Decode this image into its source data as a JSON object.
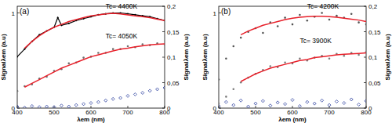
{
  "chart_data": [
    {
      "type": "scatter",
      "title": "(a)",
      "x_label": "λem (nm)",
      "y_label": "Signalλem (a.u)",
      "y2_label": "Signalλem (a.u)",
      "xlim": [
        400,
        800
      ],
      "xticks": [
        400,
        500,
        600,
        700,
        800
      ],
      "ylim": [
        0,
        1.07
      ],
      "yticks": [
        0,
        1
      ],
      "y2lim": [
        0,
        0.2
      ],
      "y2ticks": [
        0,
        {
          "value": 0.05,
          "label": "0,05"
        },
        {
          "value": 0.1,
          "label": "0,1"
        },
        {
          "value": 0.15,
          "label": "0,15"
        },
        {
          "value": 0.2,
          "label": "0,2"
        }
      ],
      "annotations": [
        {
          "text": "Tc= 4400K",
          "x": 640,
          "y": 1.045
        },
        {
          "text": "Tc= 4050K",
          "x": 640,
          "y": 0.73
        }
      ],
      "series": [
        {
          "type": "line",
          "color": "#000000",
          "marker": "circle",
          "line_style": "solid",
          "x": [
            400,
            420,
            440,
            460,
            480,
            500,
            510,
            520,
            540,
            560,
            580,
            600,
            620,
            640,
            660,
            680,
            700,
            720,
            740,
            760,
            780,
            800
          ],
          "values": [
            0.54,
            0.62,
            0.7,
            0.77,
            0.81,
            0.85,
            0.95,
            0.87,
            0.89,
            0.92,
            0.94,
            0.96,
            0.98,
            0.99,
            1.0,
            1.0,
            0.99,
            0.98,
            0.97,
            0.96,
            0.94,
            0.92
          ]
        },
        {
          "type": "line",
          "color": "#e8202a",
          "line_style": "solid",
          "x": [
            420,
            440,
            460,
            480,
            500,
            520,
            540,
            560,
            580,
            600,
            620,
            640,
            660,
            680,
            700,
            720,
            740,
            760,
            780,
            800
          ],
          "values": [
            0.63,
            0.7,
            0.76,
            0.81,
            0.85,
            0.88,
            0.91,
            0.93,
            0.95,
            0.97,
            0.98,
            0.99,
            0.995,
            0.99,
            0.98,
            0.97,
            0.96,
            0.95,
            0.935,
            0.92
          ]
        },
        {
          "type": "scatter",
          "color": "#6e6e6e",
          "marker": "circle",
          "x": [
            400,
            420,
            440,
            460,
            480,
            500,
            520,
            540,
            560,
            580,
            600,
            620,
            640,
            660,
            680,
            700,
            720,
            740,
            760,
            780,
            800
          ],
          "values": [
            0.18,
            0.23,
            0.25,
            0.31,
            0.33,
            0.39,
            0.41,
            0.47,
            0.48,
            0.53,
            0.54,
            0.58,
            0.58,
            0.62,
            0.62,
            0.65,
            0.64,
            0.67,
            0.66,
            0.68,
            0.67
          ]
        },
        {
          "type": "line",
          "color": "#e8202a",
          "line_style": "solid",
          "x": [
            420,
            440,
            460,
            480,
            500,
            520,
            540,
            560,
            580,
            600,
            620,
            640,
            660,
            680,
            700,
            720,
            740,
            760,
            780,
            800
          ],
          "values": [
            0.22,
            0.26,
            0.3,
            0.34,
            0.38,
            0.42,
            0.45,
            0.48,
            0.51,
            0.54,
            0.56,
            0.58,
            0.6,
            0.62,
            0.63,
            0.645,
            0.655,
            0.665,
            0.67,
            0.675
          ]
        },
        {
          "type": "scatter",
          "color": "#2b3f9e",
          "marker": "diamond",
          "axis": "y2",
          "x": [
            400,
            420,
            440,
            460,
            480,
            500,
            520,
            540,
            560,
            580,
            600,
            620,
            640,
            660,
            680,
            700,
            720,
            740,
            760,
            780,
            800
          ],
          "values": [
            0.003,
            0.001,
            0.004,
            0.002,
            0.003,
            0.002,
            0.005,
            0.003,
            0.006,
            0.008,
            0.01,
            0.012,
            0.015,
            0.018,
            0.02,
            0.024,
            0.027,
            0.03,
            0.034,
            0.037,
            0.04
          ]
        }
      ]
    },
    {
      "type": "scatter",
      "title": "(b)",
      "x_label": "λem (nm)",
      "y_label": "Signalλem (a.u)",
      "y2_label": "Signalλem (a.u)",
      "xlim": [
        400,
        800
      ],
      "xticks": [
        400,
        500,
        600,
        700,
        800
      ],
      "ylim": [
        0,
        1.07
      ],
      "yticks": [
        0,
        1
      ],
      "y2lim": [
        0,
        0.2
      ],
      "y2ticks": [
        0,
        {
          "value": 0.05,
          "label": "0,05"
        },
        {
          "value": 0.1,
          "label": "0,1"
        },
        {
          "value": 0.15,
          "label": "0,15"
        },
        {
          "value": 0.2,
          "label": "0,2"
        }
      ],
      "annotations": [
        {
          "text": "Tc= 4200K",
          "x": 640,
          "y": 1.045
        },
        {
          "text": "Tc= 3900K",
          "x": 620,
          "y": 0.68
        }
      ],
      "series": [
        {
          "type": "scatter",
          "color": "#555555",
          "marker": "circle",
          "x": [
            400,
            420,
            440,
            460,
            480,
            500,
            520,
            540,
            560,
            580,
            600,
            620,
            640,
            660,
            680,
            700,
            720,
            740,
            760,
            780,
            800
          ],
          "values": [
            0.3,
            0.52,
            0.65,
            0.74,
            0.8,
            0.84,
            0.79,
            0.9,
            0.86,
            0.95,
            0.88,
            0.98,
            0.92,
            0.96,
            1.0,
            0.93,
            0.97,
            0.95,
            0.99,
            0.9,
            0.88
          ]
        },
        {
          "type": "line",
          "color": "#e8202a",
          "line_style": "solid",
          "x": [
            460,
            480,
            500,
            520,
            540,
            560,
            580,
            600,
            620,
            640,
            660,
            680,
            700,
            720,
            740,
            760,
            780,
            800
          ],
          "values": [
            0.77,
            0.81,
            0.84,
            0.87,
            0.89,
            0.91,
            0.93,
            0.945,
            0.955,
            0.96,
            0.965,
            0.965,
            0.96,
            0.955,
            0.945,
            0.935,
            0.925,
            0.91
          ]
        },
        {
          "type": "scatter",
          "color": "#7a7a7a",
          "marker": "circle",
          "x": [
            400,
            420,
            440,
            460,
            480,
            500,
            520,
            540,
            560,
            580,
            600,
            620,
            640,
            660,
            680,
            700,
            720,
            740,
            760,
            780,
            800
          ],
          "values": [
            0.05,
            0.12,
            0.2,
            0.27,
            0.32,
            0.36,
            0.4,
            0.44,
            0.43,
            0.48,
            0.47,
            0.52,
            0.5,
            0.53,
            0.55,
            0.52,
            0.57,
            0.55,
            0.58,
            0.56,
            0.59
          ]
        },
        {
          "type": "line",
          "color": "#e8202a",
          "line_style": "solid",
          "x": [
            460,
            480,
            500,
            520,
            540,
            560,
            580,
            600,
            620,
            640,
            660,
            680,
            700,
            720,
            740,
            760,
            780,
            800
          ],
          "values": [
            0.28,
            0.32,
            0.36,
            0.39,
            0.42,
            0.44,
            0.46,
            0.48,
            0.5,
            0.51,
            0.53,
            0.54,
            0.55,
            0.56,
            0.565,
            0.57,
            0.575,
            0.58
          ]
        },
        {
          "type": "scatter",
          "color": "#2b3f9e",
          "marker": "diamond",
          "axis": "y2",
          "x": [
            400,
            420,
            440,
            460,
            480,
            500,
            520,
            540,
            560,
            580,
            600,
            620,
            640,
            660,
            680,
            700,
            720,
            740,
            760,
            780,
            800
          ],
          "values": [
            0.004,
            0.012,
            0.006,
            0.015,
            0.003,
            0.009,
            0.014,
            0.005,
            0.011,
            0.008,
            0.016,
            0.004,
            0.012,
            0.009,
            0.015,
            0.006,
            0.013,
            0.01,
            0.017,
            0.007,
            0.014
          ]
        }
      ]
    }
  ]
}
